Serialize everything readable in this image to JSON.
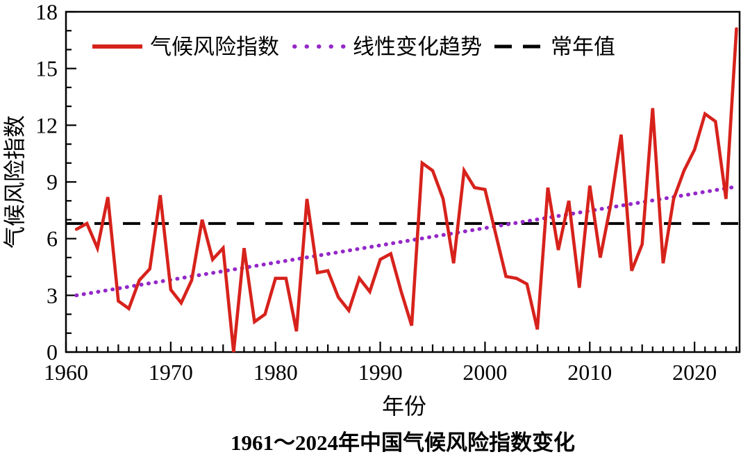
{
  "title": "1961～2024年中国气候风险指数变化",
  "axes": {
    "x_label": "年份",
    "y_label": "气候风险指数",
    "y_tick_labels": [
      "0",
      "3",
      "6",
      "9",
      "12",
      "15",
      "18"
    ],
    "x_tick_labels": [
      "1960",
      "1970",
      "1980",
      "1990",
      "2000",
      "2010",
      "2020"
    ]
  },
  "colors": {
    "risk_line": "#d7221c",
    "trend_line": "#9428c8",
    "normal_line": "#000000",
    "frame": "#000000"
  },
  "chart_data": {
    "type": "line",
    "title": "1961～2024年中国气候风险指数变化",
    "xlabel": "年份",
    "ylabel": "气候风险指数",
    "xlim": [
      1960,
      2024.3
    ],
    "ylim": [
      0,
      18
    ],
    "x_major_ticks": [
      1960,
      1970,
      1980,
      1990,
      2000,
      2010,
      2020
    ],
    "y_major_ticks": [
      0,
      3,
      6,
      9,
      12,
      15,
      18
    ],
    "grid": false,
    "legend_position": "upper-left-inside",
    "x": [
      1961,
      1962,
      1963,
      1964,
      1965,
      1966,
      1967,
      1968,
      1969,
      1970,
      1971,
      1972,
      1973,
      1974,
      1975,
      1976,
      1977,
      1978,
      1979,
      1980,
      1981,
      1982,
      1983,
      1984,
      1985,
      1986,
      1987,
      1988,
      1989,
      1990,
      1991,
      1992,
      1993,
      1994,
      1995,
      1996,
      1997,
      1998,
      1999,
      2000,
      2001,
      2002,
      2003,
      2004,
      2005,
      2006,
      2007,
      2008,
      2009,
      2010,
      2011,
      2012,
      2013,
      2014,
      2015,
      2016,
      2017,
      2018,
      2019,
      2020,
      2021,
      2022,
      2023,
      2024
    ],
    "series": [
      {
        "name": "气候风险指数",
        "style": "solid",
        "color": "#d7221c",
        "values": [
          6.5,
          6.8,
          5.5,
          8.2,
          2.7,
          2.3,
          3.8,
          4.4,
          8.3,
          3.3,
          2.6,
          3.8,
          7.0,
          4.9,
          5.5,
          0.0,
          5.5,
          1.6,
          2.0,
          3.9,
          3.9,
          1.1,
          8.1,
          4.2,
          4.3,
          2.9,
          2.2,
          3.9,
          3.2,
          4.9,
          5.2,
          3.2,
          1.4,
          10.0,
          9.6,
          8.1,
          4.7,
          9.6,
          8.7,
          8.6,
          6.3,
          4.0,
          3.9,
          3.6,
          1.2,
          8.7,
          5.4,
          8.0,
          3.4,
          8.8,
          5.0,
          7.8,
          11.5,
          4.3,
          5.7,
          12.9,
          4.7,
          8.1,
          9.6,
          10.7,
          12.6,
          12.2,
          8.1,
          17.1
        ]
      },
      {
        "name": "线性变化趋势",
        "style": "dotted",
        "color": "#9428c8",
        "trend_start_year": 1961,
        "trend_start_value": 3.0,
        "trend_end_year": 2024,
        "trend_end_value": 8.75
      },
      {
        "name": "常年值",
        "style": "dashed",
        "color": "#000000",
        "value": 6.8
      }
    ]
  }
}
